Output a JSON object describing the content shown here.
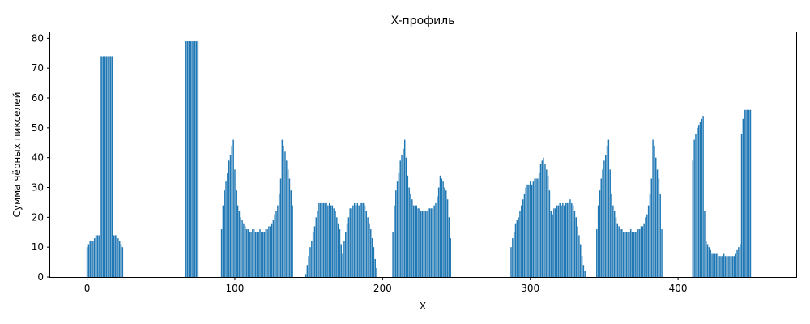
{
  "chart_data": {
    "type": "bar",
    "title": "X-профиль",
    "xlabel": "X",
    "ylabel": "Сумма чёрных пикселей",
    "xlim": [
      -25,
      480
    ],
    "ylim": [
      0,
      82
    ],
    "xticks": [
      0,
      100,
      200,
      300,
      400
    ],
    "yticks": [
      0,
      10,
      20,
      30,
      40,
      50,
      60,
      70,
      80
    ],
    "grid": false,
    "bar_color": "#1f77b4",
    "segments": [
      {
        "start": 0,
        "values": [
          10,
          11,
          12,
          12,
          12,
          13,
          14,
          14,
          14,
          74,
          74,
          74,
          74,
          74,
          74,
          74,
          74,
          74,
          14,
          14,
          14,
          13,
          12,
          11,
          10
        ]
      },
      {
        "start": 67,
        "values": [
          79,
          79,
          79,
          79,
          79,
          79,
          79,
          79,
          79
        ]
      },
      {
        "start": 91,
        "values": [
          16,
          24,
          29,
          32,
          35,
          39,
          41,
          44,
          46,
          36,
          29,
          24,
          22,
          20,
          19,
          18,
          17,
          16,
          16,
          15,
          15,
          16,
          16,
          15,
          15,
          15,
          16,
          15,
          15,
          15,
          16,
          16,
          17,
          17,
          18,
          19,
          21,
          22,
          24,
          28,
          33,
          46,
          44,
          42,
          39,
          36,
          33,
          29,
          24
        ]
      },
      {
        "start": 148,
        "values": [
          1,
          4,
          7,
          10,
          12,
          15,
          17,
          20,
          22,
          25,
          25,
          25,
          25,
          25,
          25,
          24,
          25,
          24,
          24,
          23,
          22,
          20,
          18,
          16,
          11,
          8,
          12,
          15,
          18,
          20,
          23,
          23,
          24,
          25,
          24,
          25,
          24,
          25,
          25,
          25,
          24,
          22,
          20,
          18,
          16,
          13,
          10,
          6,
          3
        ]
      },
      {
        "start": 207,
        "values": [
          15,
          24,
          29,
          32,
          35,
          39,
          41,
          43,
          46,
          40,
          34,
          30,
          28,
          26,
          24,
          24,
          24,
          23,
          23,
          22,
          22,
          22,
          22,
          22,
          23,
          23,
          23,
          23,
          24,
          25,
          27,
          30,
          34,
          33,
          32,
          30,
          29,
          26,
          20,
          13
        ]
      },
      {
        "start": 287,
        "values": [
          10,
          13,
          15,
          18,
          19,
          20,
          22,
          24,
          26,
          28,
          30,
          31,
          31,
          32,
          31,
          32,
          33,
          33,
          33,
          35,
          38,
          39,
          40,
          38,
          36,
          34,
          29,
          22,
          21,
          23,
          23,
          24,
          24,
          25,
          24,
          25,
          24,
          25,
          25,
          25,
          26,
          25,
          24,
          22,
          20,
          17,
          14,
          11,
          7,
          4,
          2
        ]
      },
      {
        "start": 345,
        "values": [
          16,
          24,
          29,
          33,
          36,
          39,
          41,
          44,
          46,
          36,
          28,
          24,
          22,
          20,
          18,
          17,
          16,
          16,
          15,
          15,
          15,
          15,
          15,
          16,
          15,
          15,
          15,
          15,
          16,
          16,
          17,
          17,
          18,
          20,
          21,
          24,
          28,
          33,
          46,
          44,
          40,
          36,
          33,
          28,
          16
        ]
      },
      {
        "start": 410,
        "values": [
          39,
          46,
          48,
          50,
          51,
          52,
          53,
          54,
          22,
          12,
          11,
          10,
          9,
          8,
          8,
          8,
          8,
          8,
          7,
          7,
          7,
          8,
          7,
          7,
          7,
          7,
          7,
          7,
          7,
          8,
          9,
          10,
          11,
          48,
          53,
          56,
          56,
          56,
          56,
          56
        ]
      }
    ]
  }
}
